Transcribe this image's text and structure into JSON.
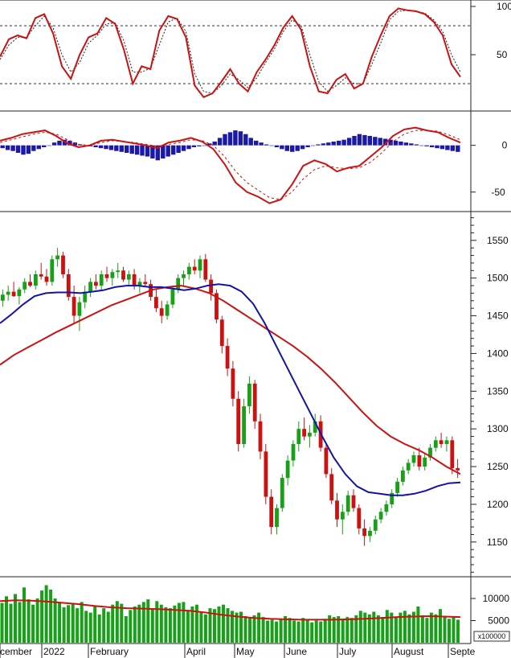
{
  "chart_data": [
    {
      "type": "line",
      "name_hint": "stochastic-panel",
      "ylim": [
        0,
        100
      ],
      "y_ticks": [
        100,
        50
      ],
      "reference_lines": [
        80,
        20
      ],
      "grid": false,
      "series": [
        {
          "key": "k",
          "color": "#cc1111",
          "style": "solid",
          "values": [
            48,
            66,
            70,
            67,
            88,
            92,
            72,
            38,
            25,
            50,
            68,
            72,
            88,
            82,
            55,
            20,
            38,
            35,
            75,
            90,
            87,
            68,
            18,
            6,
            10,
            22,
            35,
            20,
            12,
            32,
            45,
            60,
            78,
            90,
            76,
            38,
            12,
            10,
            24,
            30,
            15,
            20,
            48,
            70,
            90,
            98,
            96,
            95,
            92,
            84,
            70,
            40,
            27
          ]
        },
        {
          "key": "d",
          "color": "#222222",
          "style": "dashed",
          "values": [
            45,
            60,
            68,
            68,
            80,
            90,
            78,
            50,
            32,
            42,
            62,
            70,
            82,
            83,
            64,
            32,
            32,
            36,
            60,
            84,
            88,
            74,
            30,
            12,
            10,
            18,
            30,
            24,
            16,
            26,
            42,
            56,
            74,
            86,
            80,
            50,
            22,
            12,
            18,
            26,
            20,
            20,
            40,
            62,
            86,
            95,
            96,
            95,
            93,
            86,
            74,
            50,
            32
          ]
        }
      ]
    },
    {
      "type": "bar",
      "name_hint": "macd-panel",
      "ylim": [
        -70,
        35
      ],
      "y_ticks": [
        0,
        -50
      ],
      "grid": false,
      "series": [
        {
          "key": "histogram",
          "color": "#1a1aa6",
          "values": [
            -3,
            -5,
            -6,
            -8,
            -10,
            -9,
            -6,
            -4,
            -2,
            0,
            3,
            5,
            6,
            5,
            3,
            1,
            0,
            -1,
            -2,
            -3,
            -4,
            -5,
            -6,
            -7,
            -8,
            -9,
            -10,
            -11,
            -12,
            -14,
            -16,
            -14,
            -12,
            -10,
            -8,
            -6,
            -4,
            -2,
            -1,
            0,
            2,
            4,
            8,
            12,
            14,
            16,
            15,
            12,
            8,
            5,
            3,
            1,
            0,
            -2,
            -4,
            -6,
            -7,
            -6,
            -4,
            -2,
            0,
            1,
            2,
            3,
            4,
            5,
            6,
            8,
            10,
            12,
            11,
            10,
            9,
            8,
            7,
            6,
            5,
            4,
            3,
            2,
            1,
            0,
            -1,
            -2,
            -3,
            -4,
            -5,
            -6,
            -7
          ]
        },
        {
          "key": "macd",
          "color": "#cc1111",
          "style": "solid",
          "values": [
            5,
            8,
            12,
            14,
            16,
            10,
            2,
            -2,
            0,
            5,
            6,
            4,
            2,
            0,
            -3,
            3,
            5,
            8,
            4,
            -4,
            -20,
            -40,
            -50,
            -55,
            -62,
            -58,
            -42,
            -22,
            -16,
            -20,
            -28,
            -24,
            -22,
            -12,
            -2,
            10,
            17,
            19,
            16,
            14,
            8,
            3
          ]
        },
        {
          "key": "signal",
          "color": "#cc1111",
          "style": "dashed",
          "values": [
            3,
            6,
            9,
            12,
            14,
            12,
            6,
            1,
            0,
            3,
            5,
            4,
            3,
            1,
            -1,
            1,
            3,
            6,
            5,
            0,
            -12,
            -28,
            -40,
            -48,
            -56,
            -58,
            -50,
            -36,
            -26,
            -22,
            -24,
            -25,
            -24,
            -18,
            -8,
            4,
            12,
            16,
            16,
            15,
            11,
            6
          ]
        }
      ]
    },
    {
      "type": "line",
      "name_hint": "price-panel",
      "ylim": [
        1105,
        1585
      ],
      "y_ticks": [
        1550,
        1500,
        1450,
        1400,
        1350,
        1300,
        1250,
        1200,
        1150
      ],
      "grid": false,
      "candles": {
        "up_color": "#18a018",
        "down_color": "#cc1111",
        "ohlc": [
          [
            1470,
            1485,
            1462,
            1478
          ],
          [
            1478,
            1490,
            1470,
            1482
          ],
          [
            1482,
            1495,
            1475,
            1476
          ],
          [
            1476,
            1488,
            1465,
            1485
          ],
          [
            1485,
            1500,
            1480,
            1495
          ],
          [
            1495,
            1505,
            1488,
            1490
          ],
          [
            1490,
            1510,
            1485,
            1505
          ],
          [
            1505,
            1520,
            1498,
            1502
          ],
          [
            1502,
            1512,
            1490,
            1495
          ],
          [
            1495,
            1530,
            1490,
            1525
          ],
          [
            1525,
            1540,
            1515,
            1530
          ],
          [
            1530,
            1535,
            1500,
            1505
          ],
          [
            1505,
            1512,
            1470,
            1475
          ],
          [
            1475,
            1490,
            1440,
            1450
          ],
          [
            1450,
            1475,
            1430,
            1468
          ],
          [
            1468,
            1490,
            1460,
            1482
          ],
          [
            1482,
            1500,
            1475,
            1495
          ],
          [
            1495,
            1505,
            1485,
            1490
          ],
          [
            1490,
            1510,
            1485,
            1505
          ],
          [
            1505,
            1515,
            1495,
            1500
          ],
          [
            1500,
            1512,
            1490,
            1508
          ],
          [
            1508,
            1520,
            1500,
            1510
          ],
          [
            1510,
            1515,
            1495,
            1498
          ],
          [
            1498,
            1510,
            1490,
            1505
          ],
          [
            1505,
            1512,
            1485,
            1490
          ],
          [
            1490,
            1500,
            1480,
            1495
          ],
          [
            1495,
            1505,
            1488,
            1492
          ],
          [
            1492,
            1498,
            1470,
            1475
          ],
          [
            1475,
            1485,
            1455,
            1460
          ],
          [
            1460,
            1470,
            1440,
            1450
          ],
          [
            1450,
            1470,
            1445,
            1465
          ],
          [
            1465,
            1490,
            1460,
            1485
          ],
          [
            1485,
            1505,
            1480,
            1500
          ],
          [
            1500,
            1510,
            1490,
            1505
          ],
          [
            1505,
            1520,
            1498,
            1515
          ],
          [
            1515,
            1525,
            1505,
            1510
          ],
          [
            1510,
            1530,
            1500,
            1525
          ],
          [
            1525,
            1532,
            1495,
            1498
          ],
          [
            1498,
            1505,
            1470,
            1480
          ],
          [
            1480,
            1485,
            1440,
            1445
          ],
          [
            1445,
            1450,
            1400,
            1410
          ],
          [
            1410,
            1420,
            1370,
            1380
          ],
          [
            1380,
            1390,
            1330,
            1340
          ],
          [
            1340,
            1350,
            1270,
            1280
          ],
          [
            1280,
            1340,
            1275,
            1330
          ],
          [
            1330,
            1370,
            1320,
            1360
          ],
          [
            1360,
            1365,
            1300,
            1310
          ],
          [
            1310,
            1320,
            1260,
            1270
          ],
          [
            1270,
            1280,
            1200,
            1210
          ],
          [
            1210,
            1220,
            1160,
            1170
          ],
          [
            1170,
            1200,
            1160,
            1195
          ],
          [
            1195,
            1240,
            1190,
            1235
          ],
          [
            1235,
            1265,
            1225,
            1258
          ],
          [
            1258,
            1285,
            1250,
            1280
          ],
          [
            1280,
            1310,
            1270,
            1300
          ],
          [
            1300,
            1315,
            1285,
            1290
          ],
          [
            1290,
            1305,
            1275,
            1295
          ],
          [
            1295,
            1320,
            1290,
            1310
          ],
          [
            1310,
            1318,
            1270,
            1275
          ],
          [
            1275,
            1280,
            1235,
            1240
          ],
          [
            1240,
            1248,
            1200,
            1205
          ],
          [
            1205,
            1215,
            1170,
            1180
          ],
          [
            1180,
            1200,
            1160,
            1190
          ],
          [
            1190,
            1218,
            1185,
            1212
          ],
          [
            1212,
            1220,
            1190,
            1195
          ],
          [
            1195,
            1200,
            1160,
            1168
          ],
          [
            1168,
            1180,
            1145,
            1158
          ],
          [
            1158,
            1170,
            1150,
            1165
          ],
          [
            1165,
            1185,
            1160,
            1180
          ],
          [
            1180,
            1195,
            1175,
            1190
          ],
          [
            1190,
            1205,
            1185,
            1200
          ],
          [
            1200,
            1220,
            1195,
            1215
          ],
          [
            1215,
            1235,
            1210,
            1230
          ],
          [
            1230,
            1250,
            1225,
            1245
          ],
          [
            1245,
            1260,
            1240,
            1255
          ],
          [
            1255,
            1270,
            1250,
            1265
          ],
          [
            1265,
            1275,
            1245,
            1250
          ],
          [
            1250,
            1268,
            1245,
            1262
          ],
          [
            1262,
            1280,
            1258,
            1275
          ],
          [
            1275,
            1290,
            1270,
            1285
          ],
          [
            1285,
            1295,
            1275,
            1280
          ],
          [
            1280,
            1290,
            1270,
            1285
          ],
          [
            1285,
            1290,
            1240,
            1248
          ],
          [
            1248,
            1260,
            1235,
            1245
          ]
        ]
      },
      "series": [
        {
          "key": "ma_blue",
          "color": "#1313a8",
          "style": "solid",
          "values": [
            1440,
            1452,
            1465,
            1476,
            1480,
            1481,
            1481,
            1480,
            1482,
            1484,
            1488,
            1490,
            1490,
            1488,
            1488,
            1486,
            1484,
            1486,
            1490,
            1492,
            1490,
            1482,
            1466,
            1440,
            1410,
            1380,
            1350,
            1320,
            1290,
            1262,
            1240,
            1224,
            1216,
            1214,
            1212,
            1212,
            1214,
            1218,
            1224,
            1228,
            1229
          ]
        },
        {
          "key": "ma_red",
          "color": "#cc1111",
          "style": "solid",
          "values": [
            1385,
            1398,
            1408,
            1418,
            1428,
            1437,
            1446,
            1455,
            1464,
            1471,
            1478,
            1485,
            1488,
            1490,
            1486,
            1480,
            1470,
            1458,
            1446,
            1434,
            1422,
            1410,
            1396,
            1380,
            1362,
            1342,
            1322,
            1304,
            1290,
            1280,
            1272,
            1262,
            1250,
            1240
          ]
        }
      ],
      "x_tick_labels": [
        "cember",
        "2022",
        "February",
        "April",
        "May",
        "June",
        "July",
        "August",
        "Septe"
      ]
    },
    {
      "type": "bar",
      "name_hint": "volume-panel",
      "ylim": [
        0,
        14000
      ],
      "y_ticks": [
        10000,
        5000
      ],
      "unit_label": "x100000",
      "grid": false,
      "series": [
        {
          "key": "volume",
          "color": "#18a018",
          "values": [
            9000,
            10500,
            8800,
            11000,
            9200,
            12500,
            9800,
            8600,
            10000,
            11800,
            13000,
            12000,
            10000,
            9200,
            8000,
            8500,
            9000,
            7800,
            9200,
            7200,
            6800,
            8200,
            6400,
            7800,
            7000,
            8600,
            9400,
            8800,
            6000,
            7400,
            8200,
            8600,
            9200,
            9800,
            7600,
            9400,
            8600,
            8000,
            7800,
            8400,
            9000,
            9200,
            7400,
            8200,
            8600,
            7000,
            6400,
            7800,
            7600,
            8200,
            8600,
            7800,
            7200,
            6800,
            7000,
            6000,
            5600,
            6200,
            6800,
            5800,
            5000,
            5200,
            4800,
            5400,
            6000,
            5600,
            5000,
            4800,
            5600,
            5200,
            4600,
            5000,
            4800,
            5400,
            6200,
            5800,
            6000,
            5400,
            5800,
            5600,
            6200,
            7200,
            6800,
            6400,
            7000,
            6200,
            5800,
            7400,
            6800,
            5800,
            6800,
            7200,
            6400,
            7000,
            8200,
            6200,
            5600,
            6800,
            6400,
            7600,
            6000,
            5400,
            5800,
            5200
          ]
        },
        {
          "key": "volume_ma",
          "color": "#cc1111",
          "style": "solid",
          "values": [
            9400,
            9600,
            9500,
            9300,
            9000,
            8700,
            8300,
            8000,
            7800,
            7700,
            7600,
            7400,
            7200,
            6800,
            6300,
            5900,
            5600,
            5400,
            5300,
            5200,
            5200,
            5200,
            5300,
            5400,
            5600,
            5800,
            5900,
            6000,
            5900,
            5800
          ]
        }
      ]
    }
  ]
}
